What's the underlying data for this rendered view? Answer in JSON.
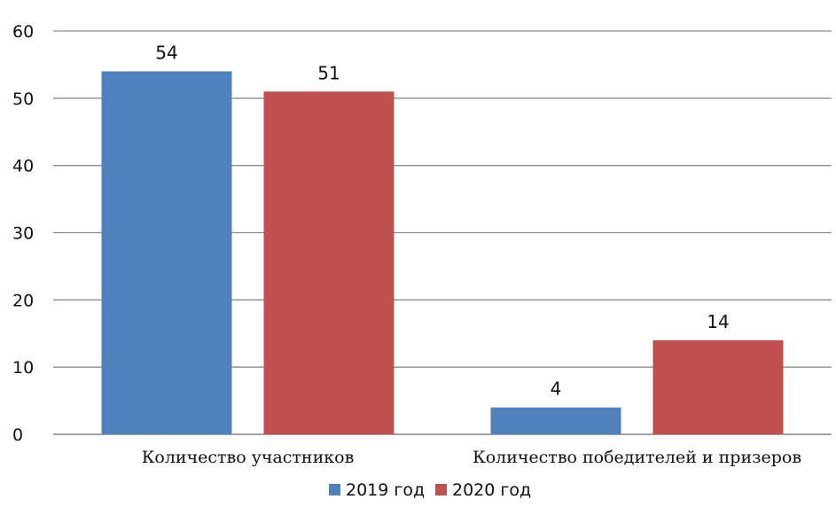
{
  "chart_data": {
    "type": "bar",
    "categories": [
      "Количество участников",
      "Количество победителей и призеров"
    ],
    "series": [
      {
        "name": "2019 год",
        "values": [
          54,
          4
        ],
        "color": "#4f81bd"
      },
      {
        "name": "2020 год",
        "values": [
          51,
          14
        ],
        "color": "#c0504d"
      }
    ],
    "ylim": [
      0,
      60
    ],
    "yticks": [
      0,
      10,
      20,
      30,
      40,
      50,
      60
    ],
    "data_labels": true,
    "grid": true,
    "legend_position": "bottom"
  }
}
